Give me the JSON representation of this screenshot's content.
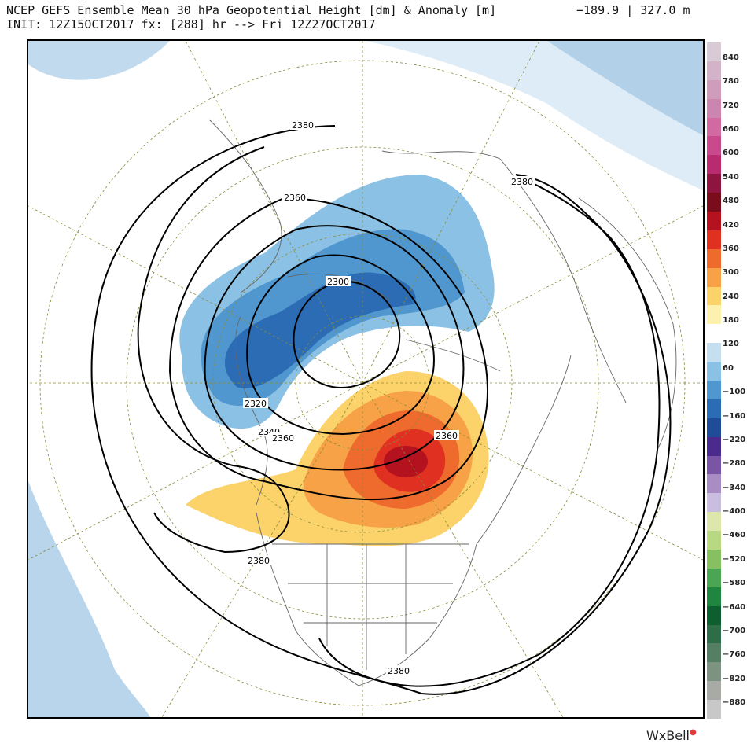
{
  "header": {
    "title_line1": "NCEP GEFS Ensemble Mean 30 hPa Geopotential Height [dm] & Anomaly [m]",
    "title_line2": "INIT: 12Z15OCT2017 fx: [288] hr --> Fri 12Z27OCT2017",
    "range_readout": "−189.9 | 327.0 m"
  },
  "colorbar": {
    "labels": [
      "840",
      "780",
      "720",
      "660",
      "600",
      "540",
      "480",
      "420",
      "360",
      "300",
      "240",
      "180",
      "120",
      "60",
      "−100",
      "−160",
      "−220",
      "−280",
      "−340",
      "−400",
      "−460",
      "−520",
      "−580",
      "−640",
      "−700",
      "−760",
      "−820",
      "−880"
    ],
    "colors": [
      "#d9cbd6",
      "#d3b3c8",
      "#cf9cbb",
      "#cb85ae",
      "#d06aa0",
      "#c84a8c",
      "#b82b6f",
      "#8d1540",
      "#7a0d1c",
      "#b4121e",
      "#e03021",
      "#ef6a2d",
      "#f7a247",
      "#fbd36a",
      "#fdf1b0",
      "#ffffff",
      "#c6dff0",
      "#8ac1e4",
      "#5097cf",
      "#2b6cb4",
      "#1e4c97",
      "#4a2a8a",
      "#7a55a5",
      "#a88cc4",
      "#c9bde0",
      "#dde7ab",
      "#b9d883",
      "#86c063",
      "#4ca553",
      "#20853f",
      "#0f5e2f",
      "#2d6e48",
      "#547f62",
      "#7d9281",
      "#a7aaa5",
      "#c8c8c8"
    ]
  },
  "map": {
    "contour_labels": [
      "2380",
      "2380",
      "2360",
      "2300",
      "2320",
      "2340",
      "2360",
      "2360",
      "2380",
      "2380"
    ]
  },
  "branding": {
    "logo_text": "WxBell"
  }
}
